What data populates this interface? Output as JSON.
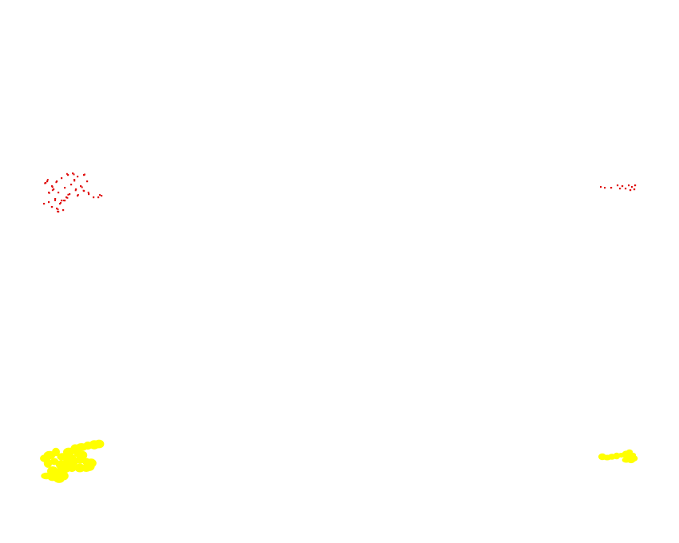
{
  "background_color": "#ffffff",
  "marker_colors": {
    "red_dots": "#e01010",
    "yellow_blobs": "#ffff00"
  },
  "clusters": [
    {
      "name": "red-dot-cluster-left",
      "color_key": "red_dots",
      "kind": "dots"
    },
    {
      "name": "red-dot-cluster-right",
      "color_key": "red_dots",
      "kind": "dots"
    },
    {
      "name": "yellow-blob-cluster-left",
      "color_key": "yellow_blobs",
      "kind": "blobs"
    },
    {
      "name": "yellow-blob-cluster-right",
      "color_key": "yellow_blobs",
      "kind": "blobs"
    }
  ]
}
